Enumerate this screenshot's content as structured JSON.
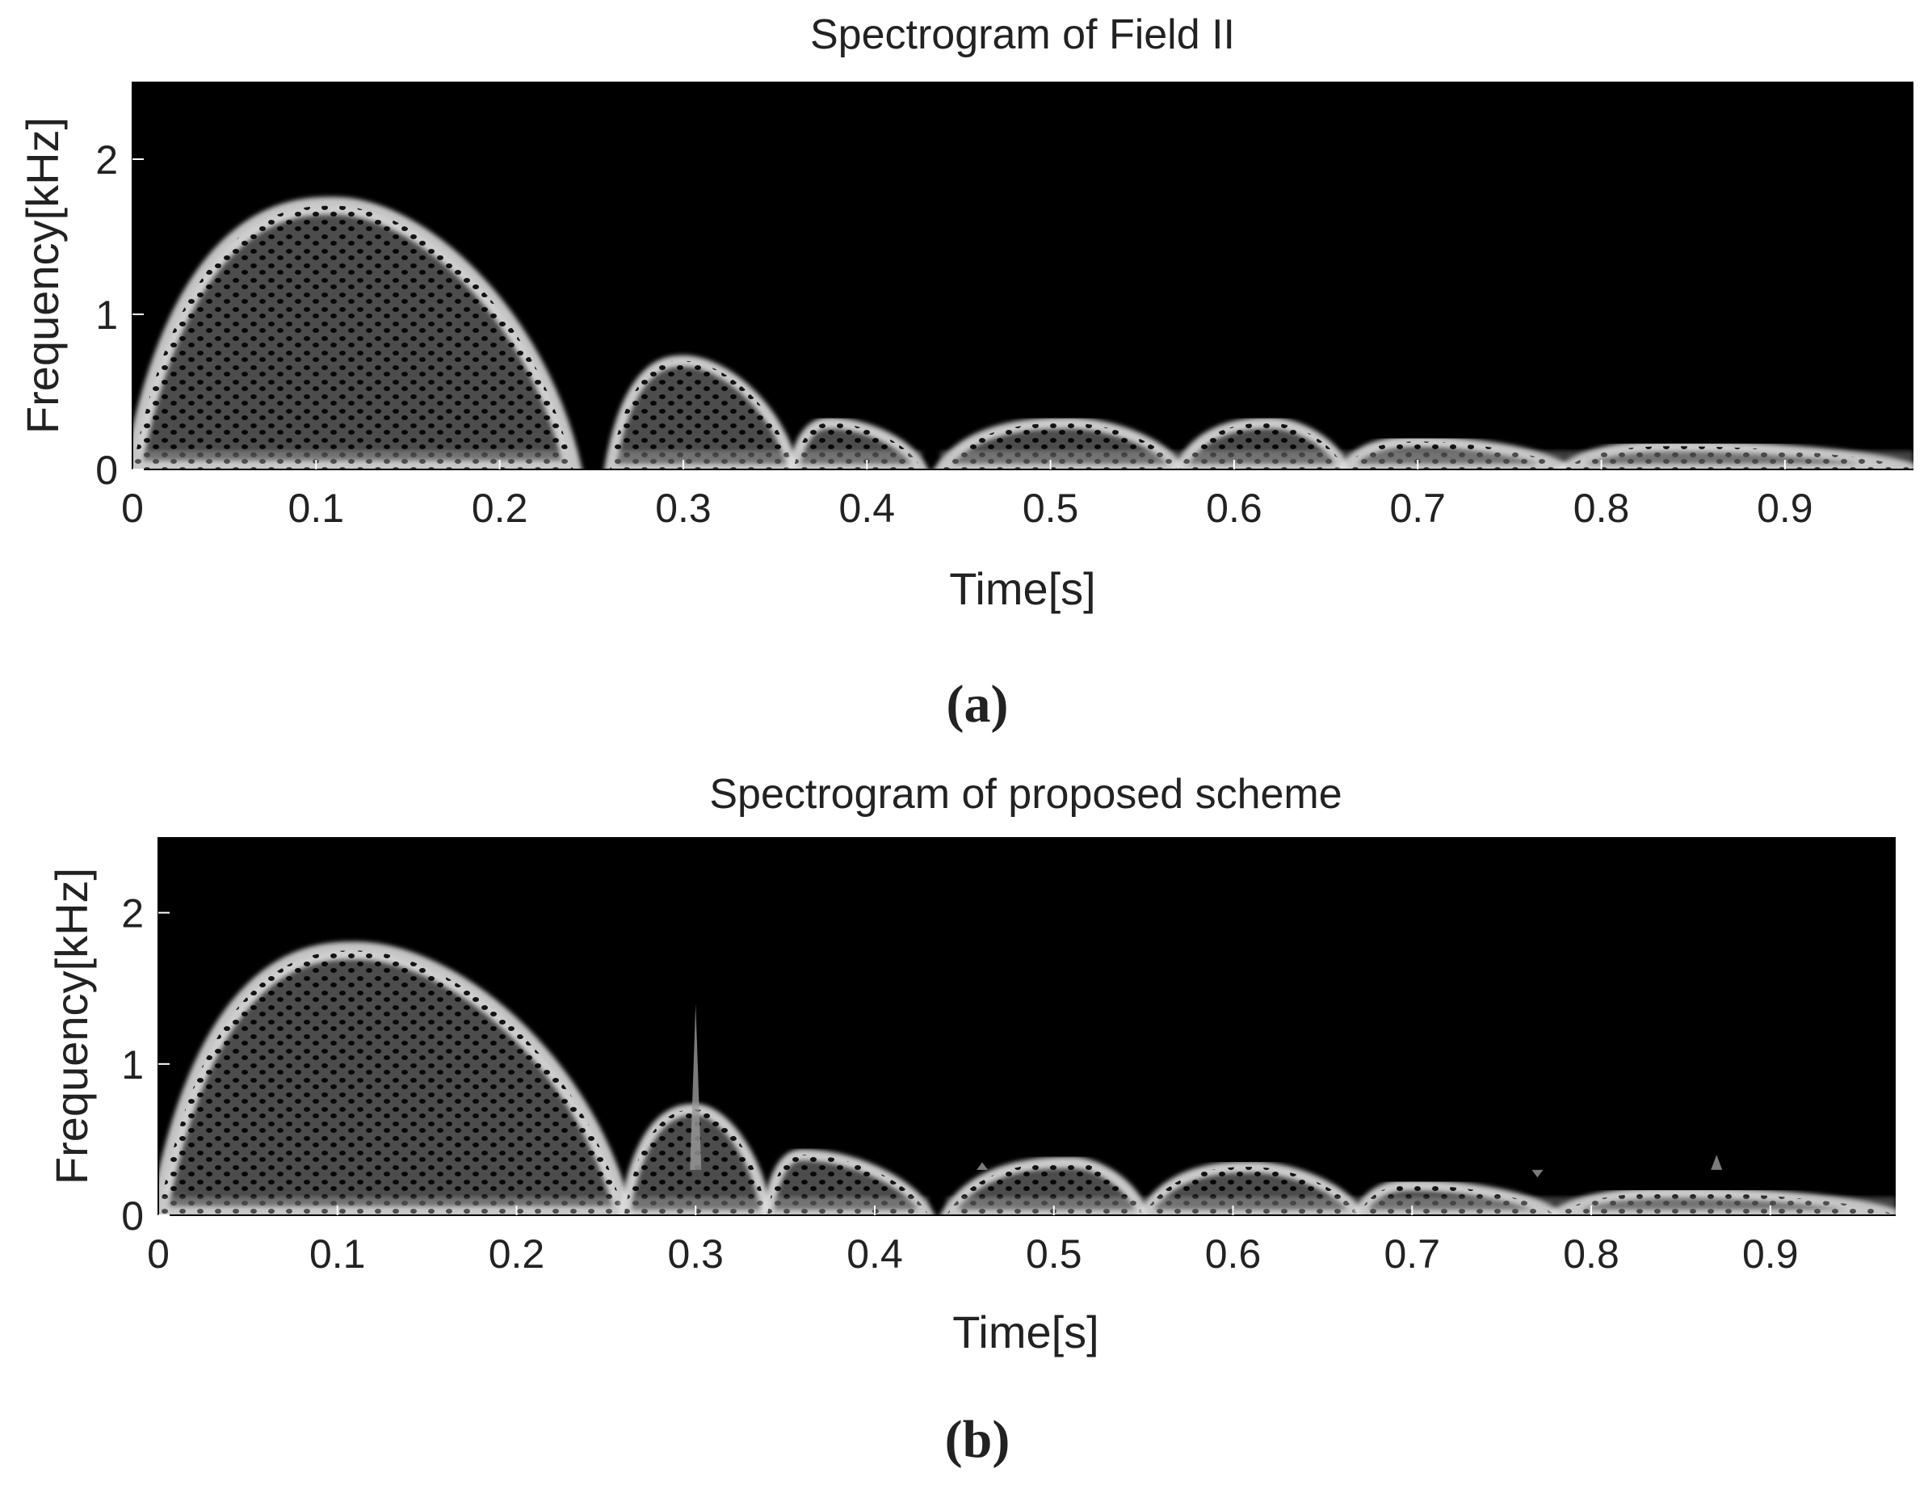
{
  "figure": {
    "panels": [
      {
        "caption": "(a)",
        "chart_data": {
          "type": "heatmap",
          "title": "Spectrogram of Field II",
          "xlabel": "Time[s]",
          "ylabel": "Frequency[kHz]",
          "xlim": [
            0,
            0.97
          ],
          "ylim": [
            0,
            2.5
          ],
          "xticks": [
            0,
            0.1,
            0.2,
            0.3,
            0.4,
            0.5,
            0.6,
            0.7,
            0.8,
            0.9
          ],
          "xtick_labels": [
            "0",
            "0.1",
            "0.2",
            "0.3",
            "0.4",
            "0.5",
            "0.6",
            "0.7",
            "0.8",
            "0.9"
          ],
          "yticks": [
            0,
            1,
            2
          ],
          "ytick_labels": [
            "0",
            "1",
            "2"
          ],
          "colormap": "gray",
          "background": "#000000",
          "grid": false,
          "lobes": [
            {
              "t_start": 0.0,
              "t_end": 0.24,
              "peak_freq_khz": 1.7,
              "peak_time": 0.11
            },
            {
              "t_start": 0.26,
              "t_end": 0.36,
              "peak_freq_khz": 0.7,
              "peak_time": 0.3
            },
            {
              "t_start": 0.36,
              "t_end": 0.43,
              "peak_freq_khz": 0.3,
              "peak_time": 0.38
            },
            {
              "t_start": 0.44,
              "t_end": 0.57,
              "peak_freq_khz": 0.3,
              "peak_time": 0.51
            },
            {
              "t_start": 0.57,
              "t_end": 0.66,
              "peak_freq_khz": 0.3,
              "peak_time": 0.62
            },
            {
              "t_start": 0.66,
              "t_end": 0.78,
              "peak_freq_khz": 0.18,
              "peak_time": 0.7
            },
            {
              "t_start": 0.78,
              "t_end": 0.97,
              "peak_freq_khz": 0.15,
              "peak_time": 0.84
            }
          ],
          "spikes": []
        }
      },
      {
        "caption": "(b)",
        "chart_data": {
          "type": "heatmap",
          "title": "Spectrogram of proposed scheme",
          "xlabel": "Time[s]",
          "ylabel": "Frequency[kHz]",
          "xlim": [
            0,
            0.97
          ],
          "ylim": [
            0,
            2.5
          ],
          "xticks": [
            0,
            0.1,
            0.2,
            0.3,
            0.4,
            0.5,
            0.6,
            0.7,
            0.8,
            0.9
          ],
          "xtick_labels": [
            "0",
            "0.1",
            "0.2",
            "0.3",
            "0.4",
            "0.5",
            "0.6",
            "0.7",
            "0.8",
            "0.9"
          ],
          "yticks": [
            0,
            1,
            2
          ],
          "ytick_labels": [
            "0",
            "1",
            "2"
          ],
          "colormap": "gray",
          "background": "#000000",
          "grid": false,
          "lobes": [
            {
              "t_start": 0.0,
              "t_end": 0.26,
              "peak_freq_khz": 1.75,
              "peak_time": 0.11
            },
            {
              "t_start": 0.26,
              "t_end": 0.34,
              "peak_freq_khz": 0.7,
              "peak_time": 0.3
            },
            {
              "t_start": 0.34,
              "t_end": 0.43,
              "peak_freq_khz": 0.4,
              "peak_time": 0.36
            },
            {
              "t_start": 0.44,
              "t_end": 0.55,
              "peak_freq_khz": 0.35,
              "peak_time": 0.51
            },
            {
              "t_start": 0.55,
              "t_end": 0.67,
              "peak_freq_khz": 0.32,
              "peak_time": 0.61
            },
            {
              "t_start": 0.67,
              "t_end": 0.78,
              "peak_freq_khz": 0.2,
              "peak_time": 0.7
            },
            {
              "t_start": 0.78,
              "t_end": 0.97,
              "peak_freq_khz": 0.15,
              "peak_time": 0.85
            }
          ],
          "spikes": [
            {
              "time": 0.3,
              "freq_khz": 1.4
            },
            {
              "time": 0.46,
              "freq_khz": 0.35
            },
            {
              "time": 0.77,
              "freq_khz": 0.25
            },
            {
              "time": 0.87,
              "freq_khz": 0.4
            }
          ]
        }
      }
    ]
  }
}
